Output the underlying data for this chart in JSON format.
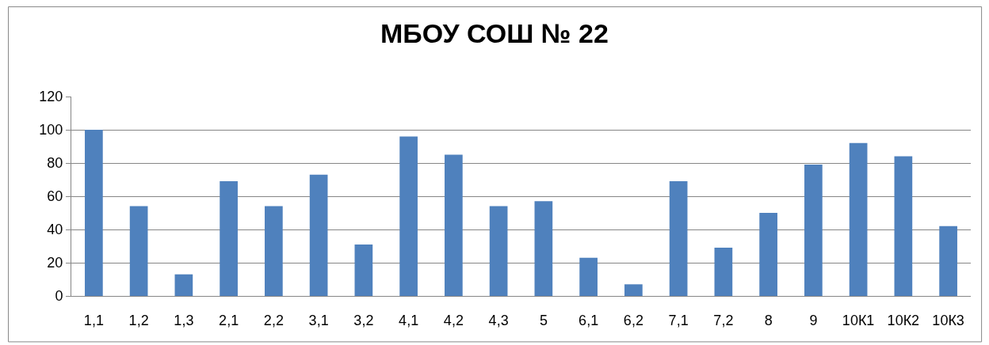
{
  "chart_data": {
    "type": "bar",
    "title": "МБОУ СОШ № 22",
    "categories": [
      "1,1",
      "1,2",
      "1,3",
      "2,1",
      "2,2",
      "3,1",
      "3,2",
      "4,1",
      "4,2",
      "4,3",
      "5",
      "6,1",
      "6,2",
      "7,1",
      "7,2",
      "8",
      "9",
      "10К1",
      "10К2",
      "10К3"
    ],
    "values": [
      100,
      54,
      13,
      69,
      54,
      73,
      31,
      96,
      85,
      54,
      57,
      23,
      7,
      69,
      29,
      50,
      79,
      92,
      84,
      42
    ],
    "color": "#4f81bd",
    "ylim": [
      0,
      120
    ],
    "yticks": [
      0,
      20,
      40,
      60,
      80,
      100,
      120
    ],
    "grid": "y"
  }
}
